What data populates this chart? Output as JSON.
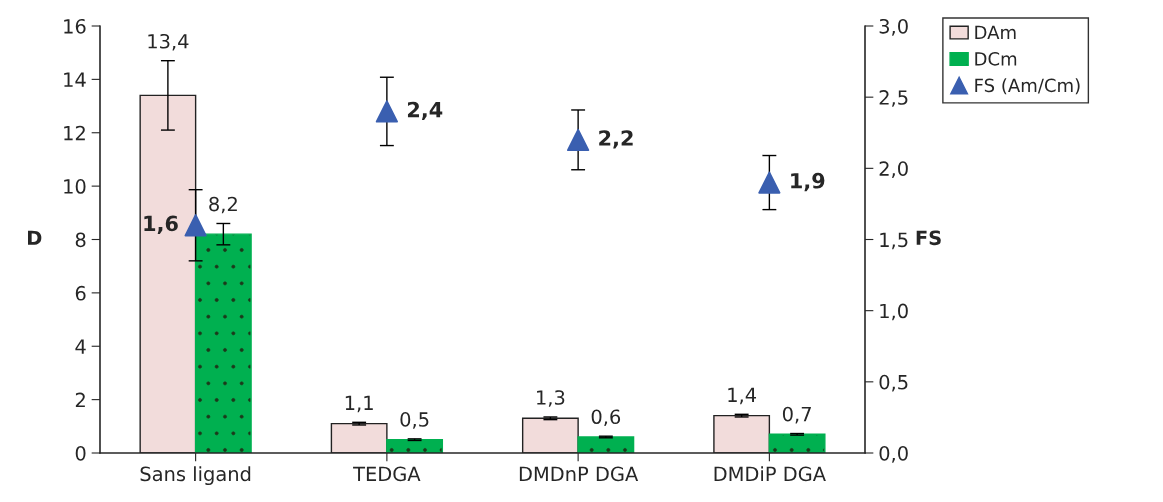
{
  "chart_data": {
    "type": "bar",
    "ylabel": "D",
    "y2label": "FS",
    "categories": [
      "Sans ligand",
      "TEDGA",
      "DMDnP DGA",
      "DMDiP DGA"
    ],
    "series": [
      {
        "name": "DAm",
        "color": "#f2dcdb",
        "values": [
          13.4,
          1.1,
          1.3,
          1.4
        ],
        "errors": [
          1.3,
          0.05,
          0.05,
          0.05
        ],
        "value_labels": [
          "13,4",
          "1,1",
          "1,3",
          "1,4"
        ]
      },
      {
        "name": "DCm",
        "color": "#00b050",
        "values": [
          8.2,
          0.5,
          0.6,
          0.7
        ],
        "errors": [
          0.4,
          0.03,
          0.03,
          0.03
        ],
        "value_labels": [
          "8,2",
          "0,5",
          "0,6",
          "0,7"
        ]
      },
      {
        "name": "FS (Am/Cm)",
        "type": "scatter",
        "axis": "y2",
        "marker": "triangle",
        "color": "#3a5fb0",
        "values": [
          1.6,
          2.4,
          2.2,
          1.9
        ],
        "errors": [
          0.25,
          0.24,
          0.21,
          0.19
        ],
        "value_labels": [
          "1,6",
          "2,4",
          "2,2",
          "1,9"
        ]
      }
    ],
    "ylim": [
      0,
      16
    ],
    "yticks": [
      0,
      2,
      4,
      6,
      8,
      10,
      12,
      14,
      16
    ],
    "y2lim": [
      0,
      3
    ],
    "y2ticks": [
      {
        "value": 0,
        "label": "0,0"
      },
      {
        "value": 0.5,
        "label": "0,5"
      },
      {
        "value": 1,
        "label": "1,0"
      },
      {
        "value": 1.5,
        "label": "1,5"
      },
      {
        "value": 2,
        "label": "2,0"
      },
      {
        "value": 2.5,
        "label": "2,5"
      },
      {
        "value": 3,
        "label": "3,0"
      }
    ],
    "legend": "top right",
    "grid": false
  }
}
